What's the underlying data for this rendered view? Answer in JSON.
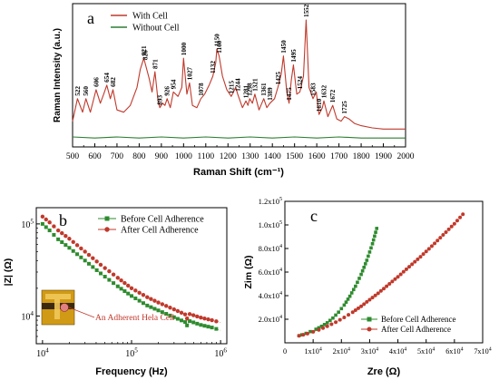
{
  "chart_data": [
    {
      "type": "line",
      "panel_label": "a",
      "title": "",
      "xlabel": "Raman Shift (cm⁻¹)",
      "ylabel": "Raman Intensity (a.u.)",
      "xlim": [
        500,
        2000
      ],
      "x_ticks": [
        "500",
        "600",
        "700",
        "800",
        "900",
        "1000",
        "1100",
        "1200",
        "1300",
        "1400",
        "1500",
        "1600",
        "1700",
        "1800",
        "1900",
        "2000"
      ],
      "x_tick_values": [
        500,
        600,
        700,
        800,
        900,
        1000,
        1100,
        1200,
        1300,
        1400,
        1500,
        1600,
        1700,
        1800,
        1900,
        2000
      ],
      "ylim": [
        0,
        1
      ],
      "legend_position": "top-left",
      "series": [
        {
          "name": "With Cell",
          "color": "#c0392b",
          "x": [
            500,
            522,
            545,
            560,
            580,
            606,
            625,
            640,
            654,
            670,
            682,
            700,
            730,
            760,
            790,
            805,
            821,
            826,
            845,
            858,
            871,
            885,
            893,
            905,
            916,
            926,
            940,
            954,
            975,
            992,
            1000,
            1015,
            1027,
            1040,
            1060,
            1078,
            1095,
            1115,
            1132,
            1145,
            1150,
            1160,
            1175,
            1195,
            1215,
            1235,
            1244,
            1265,
            1281,
            1290,
            1298,
            1310,
            1321,
            1340,
            1361,
            1375,
            1389,
            1410,
            1425,
            1440,
            1450,
            1465,
            1475,
            1485,
            1495,
            1510,
            1524,
            1540,
            1552,
            1565,
            1583,
            1598,
            1610,
            1625,
            1632,
            1650,
            1672,
            1690,
            1710,
            1725,
            1745,
            1770,
            1800,
            1850,
            1900,
            1950,
            2000
          ],
          "y": [
            0.1,
            0.3,
            0.18,
            0.3,
            0.18,
            0.38,
            0.26,
            0.34,
            0.42,
            0.3,
            0.38,
            0.2,
            0.18,
            0.24,
            0.4,
            0.56,
            0.66,
            0.62,
            0.48,
            0.36,
            0.54,
            0.28,
            0.22,
            0.26,
            0.24,
            0.3,
            0.22,
            0.36,
            0.32,
            0.4,
            0.66,
            0.34,
            0.44,
            0.24,
            0.22,
            0.3,
            0.34,
            0.42,
            0.5,
            0.62,
            0.74,
            0.68,
            0.5,
            0.38,
            0.32,
            0.4,
            0.34,
            0.22,
            0.28,
            0.24,
            0.3,
            0.26,
            0.34,
            0.2,
            0.3,
            0.22,
            0.26,
            0.3,
            0.4,
            0.52,
            0.68,
            0.36,
            0.26,
            0.46,
            0.6,
            0.34,
            0.36,
            0.5,
            1.0,
            0.4,
            0.3,
            0.36,
            0.16,
            0.22,
            0.28,
            0.14,
            0.24,
            0.12,
            0.1,
            0.14,
            0.12,
            0.08,
            0.06,
            0.04,
            0.03,
            0.03,
            0.03
          ]
        },
        {
          "name": "Without Cell",
          "color": "#2e7d32",
          "x": [
            500,
            600,
            700,
            800,
            900,
            1000,
            1100,
            1200,
            1300,
            1400,
            1500,
            1600,
            1700,
            1800,
            1900,
            2000
          ],
          "y": [
            -0.04,
            -0.05,
            -0.04,
            -0.05,
            -0.04,
            -0.05,
            -0.04,
            -0.05,
            -0.04,
            -0.05,
            -0.04,
            -0.05,
            -0.04,
            -0.05,
            -0.05,
            -0.05
          ]
        }
      ],
      "annotations": [
        {
          "text": "522",
          "x": 522,
          "y": 0.3
        },
        {
          "text": "560",
          "x": 560,
          "y": 0.3
        },
        {
          "text": "606",
          "x": 606,
          "y": 0.38
        },
        {
          "text": "654",
          "x": 654,
          "y": 0.42
        },
        {
          "text": "682",
          "x": 682,
          "y": 0.38
        },
        {
          "text": "821",
          "x": 821,
          "y": 0.66
        },
        {
          "text": "826",
          "x": 826,
          "y": 0.62
        },
        {
          "text": "871",
          "x": 871,
          "y": 0.54
        },
        {
          "text": "893",
          "x": 893,
          "y": 0.22
        },
        {
          "text": "926",
          "x": 926,
          "y": 0.3
        },
        {
          "text": "954",
          "x": 954,
          "y": 0.36
        },
        {
          "text": "1000",
          "x": 1000,
          "y": 0.66
        },
        {
          "text": "1027",
          "x": 1027,
          "y": 0.44
        },
        {
          "text": "1078",
          "x": 1078,
          "y": 0.3
        },
        {
          "text": "1132",
          "x": 1132,
          "y": 0.5
        },
        {
          "text": "1150",
          "x": 1150,
          "y": 0.74
        },
        {
          "text": "1160",
          "x": 1160,
          "y": 0.68
        },
        {
          "text": "1215",
          "x": 1215,
          "y": 0.32
        },
        {
          "text": "1244",
          "x": 1244,
          "y": 0.34
        },
        {
          "text": "1281",
          "x": 1281,
          "y": 0.28
        },
        {
          "text": "1298",
          "x": 1298,
          "y": 0.3
        },
        {
          "text": "1321",
          "x": 1321,
          "y": 0.34
        },
        {
          "text": "1361",
          "x": 1361,
          "y": 0.3
        },
        {
          "text": "1389",
          "x": 1389,
          "y": 0.26
        },
        {
          "text": "1425",
          "x": 1425,
          "y": 0.4
        },
        {
          "text": "1450",
          "x": 1450,
          "y": 0.68
        },
        {
          "text": "1475",
          "x": 1475,
          "y": 0.26
        },
        {
          "text": "1495",
          "x": 1495,
          "y": 0.6
        },
        {
          "text": "1524",
          "x": 1524,
          "y": 0.36
        },
        {
          "text": "1552",
          "x": 1552,
          "y": 1.0
        },
        {
          "text": "1583",
          "x": 1583,
          "y": 0.3
        },
        {
          "text": "1610",
          "x": 1610,
          "y": 0.16
        },
        {
          "text": "1632",
          "x": 1632,
          "y": 0.28
        },
        {
          "text": "1672",
          "x": 1672,
          "y": 0.24
        },
        {
          "text": "1725",
          "x": 1725,
          "y": 0.14
        }
      ]
    },
    {
      "type": "line",
      "panel_label": "b",
      "title": "",
      "xlabel": "Frequency (Hz)",
      "ylabel": "|Z| (Ω)",
      "x_scale": "log",
      "y_scale": "log",
      "xlim": [
        10000,
        1000000
      ],
      "ylim": [
        5000,
        150000
      ],
      "x_ticks": [
        {
          "value": 10000,
          "base": "10",
          "exp": "4"
        },
        {
          "value": 100000,
          "base": "10",
          "exp": "5"
        },
        {
          "value": 1000000,
          "base": "10",
          "exp": "6"
        }
      ],
      "y_ticks": [
        {
          "value": 10000,
          "base": "10",
          "exp": "4"
        },
        {
          "value": 100000,
          "base": "10",
          "exp": "5"
        }
      ],
      "legend_position": "top-right",
      "inset_caption": "An Adherent Hela Cell",
      "series": [
        {
          "name": "Before Cell Adherence",
          "color": "#2e8b2e",
          "marker": "square",
          "x": [
            10000,
            12000,
            15000,
            20000,
            30000,
            45000,
            70000,
            100000,
            150000,
            200000,
            300000,
            400000,
            420000,
            450000,
            600000,
            800000,
            1000000
          ],
          "y": [
            100000,
            85000,
            68000,
            55000,
            40000,
            29000,
            21000,
            16500,
            13000,
            11500,
            9700,
            8600,
            7900,
            8800,
            8000,
            7500,
            7000
          ]
        },
        {
          "name": "After Cell Adherence",
          "color": "#c0392b",
          "marker": "circle",
          "x": [
            10000,
            12000,
            15000,
            20000,
            30000,
            45000,
            70000,
            100000,
            150000,
            200000,
            300000,
            400000,
            420000,
            450000,
            600000,
            800000,
            1000000
          ],
          "y": [
            120000,
            104000,
            85000,
            69000,
            50000,
            36000,
            26000,
            20000,
            16000,
            14000,
            11800,
            10400,
            9400,
            10500,
            9600,
            9000,
            8500
          ]
        }
      ]
    },
    {
      "type": "line",
      "panel_label": "c",
      "title": "",
      "xlabel": "Zre (Ω)",
      "ylabel": "Zim (Ω)",
      "xlim": [
        0,
        70000
      ],
      "ylim": [
        0,
        120000
      ],
      "x_ticks": [
        {
          "value": 0,
          "mant": "0",
          "exp": ""
        },
        {
          "value": 10000,
          "mant": "1x10",
          "exp": "4"
        },
        {
          "value": 20000,
          "mant": "2x10",
          "exp": "4"
        },
        {
          "value": 30000,
          "mant": "3x10",
          "exp": "4"
        },
        {
          "value": 40000,
          "mant": "4x10",
          "exp": "4"
        },
        {
          "value": 50000,
          "mant": "5x10",
          "exp": "4"
        },
        {
          "value": 60000,
          "mant": "6x10",
          "exp": "4"
        },
        {
          "value": 70000,
          "mant": "7x10",
          "exp": "4"
        }
      ],
      "y_ticks": [
        {
          "value": 20000,
          "mant": "2.0x10",
          "exp": "4"
        },
        {
          "value": 40000,
          "mant": "4.0x10",
          "exp": "4"
        },
        {
          "value": 60000,
          "mant": "6.0x10",
          "exp": "4"
        },
        {
          "value": 80000,
          "mant": "8.0x10",
          "exp": "4"
        },
        {
          "value": 100000,
          "mant": "1.0x10",
          "exp": "5"
        },
        {
          "value": 120000,
          "mant": "1.2x10",
          "exp": "5"
        }
      ],
      "legend_position": "bottom-right",
      "series": [
        {
          "name": "Before Cell Adherence",
          "color": "#2e8b2e",
          "marker": "square",
          "x": [
            5000,
            6000,
            7500,
            9000,
            11000,
            13000,
            15000,
            17000,
            19000,
            21000,
            23000,
            25000,
            27000,
            29000,
            31000,
            32500
          ],
          "y": [
            6000,
            6800,
            8000,
            9500,
            11500,
            14000,
            17000,
            21000,
            26000,
            32000,
            39500,
            48000,
            58000,
            70000,
            84000,
            97000
          ]
        },
        {
          "name": "After Cell Adherence",
          "color": "#c0392b",
          "marker": "circle",
          "x": [
            5000,
            6500,
            8000,
            10000,
            12000,
            15000,
            18000,
            21000,
            24000,
            27000,
            30000,
            33000,
            36000,
            40000,
            44000,
            48000,
            52000,
            56000,
            60000,
            63000
          ],
          "y": [
            6000,
            6800,
            7800,
            9300,
            11000,
            14000,
            17500,
            21500,
            26000,
            31000,
            36500,
            42000,
            48000,
            56000,
            64500,
            73000,
            82000,
            91500,
            101000,
            109000
          ]
        }
      ]
    }
  ]
}
